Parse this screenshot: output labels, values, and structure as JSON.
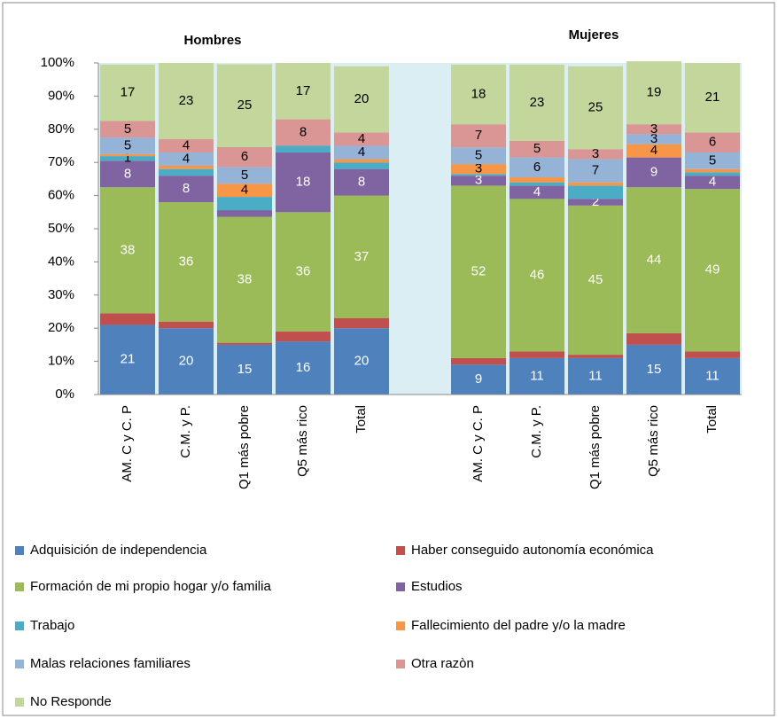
{
  "chart_data": {
    "type": "stacked_bar",
    "group_labels": [
      "Hombres",
      "Mujeres"
    ],
    "categories": [
      "AM. C y C. P",
      "C.M. y P.",
      "Q1 más pobre",
      "Q5 más rico",
      "Total",
      null,
      "AM. C y C. P",
      "C.M. y P.",
      "Q1 más pobre",
      "Q5 más rico",
      "Total"
    ],
    "ylim": [
      0,
      100
    ],
    "yticks": [
      {
        "value": 0,
        "label": "0%"
      },
      {
        "value": 10,
        "label": "10%"
      },
      {
        "value": 20,
        "label": "20%"
      },
      {
        "value": 30,
        "label": "30%"
      },
      {
        "value": 40,
        "label": "40%"
      },
      {
        "value": 50,
        "label": "50%"
      },
      {
        "value": 60,
        "label": "60%"
      },
      {
        "value": 70,
        "label": "70%"
      },
      {
        "value": 80,
        "label": "80%"
      },
      {
        "value": 90,
        "label": "90%"
      },
      {
        "value": 100,
        "label": "100%"
      }
    ],
    "legend": "bottom",
    "series": [
      {
        "name": "Adquisición de independencia",
        "color": "#4f81bd",
        "values": [
          21,
          20,
          15,
          16,
          20,
          null,
          9,
          11,
          11,
          15,
          11
        ],
        "value_labels": [
          "21",
          "20",
          "15",
          "16",
          "20",
          null,
          "9",
          "11",
          "11",
          "15",
          "11"
        ]
      },
      {
        "name": "Haber conseguido autonomía económica",
        "color": "#c0504d",
        "values": [
          3.5,
          2,
          0.6,
          3,
          3,
          null,
          2,
          2,
          1,
          3.5,
          2
        ],
        "value_labels": [
          null,
          null,
          null,
          null,
          null,
          null,
          null,
          null,
          null,
          null,
          null
        ]
      },
      {
        "name": "Formación de mi propio hogar y/o familia",
        "color": "#9bbb59",
        "values": [
          38,
          36,
          38,
          36,
          37,
          null,
          52,
          46,
          45,
          44,
          49
        ],
        "value_labels": [
          "38",
          "36",
          "38",
          "36",
          "37",
          null,
          "52",
          "46",
          "45",
          "44",
          "49"
        ]
      },
      {
        "name": "Estudios",
        "color": "#8064a2",
        "values": [
          8,
          8,
          2,
          18,
          8,
          null,
          3,
          4,
          2,
          9,
          4
        ],
        "value_labels": [
          "8",
          "8",
          null,
          "18",
          "8",
          null,
          "3",
          "4",
          "2",
          "9",
          "4"
        ]
      },
      {
        "name": "Trabajo",
        "color": "#4bacc6",
        "values": [
          1.4,
          2,
          4,
          2,
          2,
          null,
          0.5,
          1,
          4,
          0,
          1
        ],
        "value_labels": [
          "1",
          null,
          null,
          null,
          null,
          null,
          null,
          null,
          null,
          null,
          null
        ]
      },
      {
        "name": "Fallecimiento del padre y/o la madre",
        "color": "#f79646",
        "values": [
          0.6,
          1,
          4,
          0,
          1,
          null,
          3,
          1.5,
          1,
          4,
          1
        ],
        "value_labels": [
          null,
          null,
          "4",
          null,
          null,
          null,
          "3",
          null,
          null,
          "4",
          null
        ]
      },
      {
        "name": "Malas relaciones familiares",
        "color": "#95b3d7",
        "values": [
          5,
          4,
          5,
          0,
          4,
          null,
          5,
          6,
          7,
          3,
          5
        ],
        "value_labels": [
          "5",
          "4",
          "5",
          null,
          "4",
          null,
          "5",
          "6",
          "7",
          "3",
          "5"
        ]
      },
      {
        "name": "Otra razòn",
        "color": "#d99694",
        "values": [
          5,
          4,
          6,
          8,
          4,
          null,
          7,
          5,
          3,
          3,
          6
        ],
        "value_labels": [
          "5",
          "4",
          "6",
          "8",
          "4",
          null,
          "7",
          "5",
          "3",
          "3",
          "6"
        ]
      },
      {
        "name": "No Responde",
        "color": "#c3d69b",
        "values": [
          17,
          23,
          25,
          17,
          20,
          null,
          18,
          23,
          25,
          19,
          21
        ],
        "value_labels": [
          "17",
          "23",
          "25",
          "17",
          "20",
          null,
          "18",
          "23",
          "25",
          "19",
          "21"
        ]
      }
    ]
  }
}
